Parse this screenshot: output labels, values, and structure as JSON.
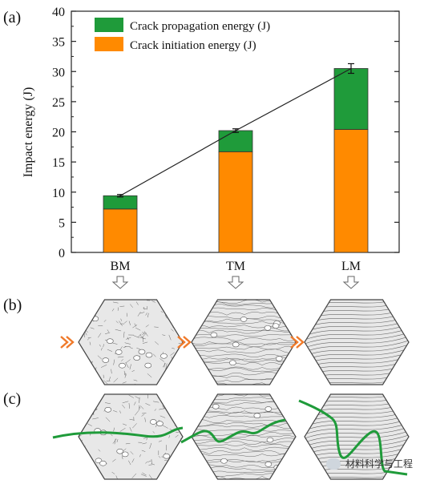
{
  "panels": {
    "a": "(a)",
    "b": "(b)",
    "c": "(c)"
  },
  "colors": {
    "propagation": "#1f9b3a",
    "initiation": "#ff8a00",
    "crack": "#1f9b3a",
    "chevron": "#f07a2a",
    "hex_fill": "#e8e8e8"
  },
  "chart_data": {
    "type": "bar",
    "stacked": true,
    "categories": [
      "BM",
      "TM",
      "LM"
    ],
    "ylabel": "Impact energy (J)",
    "xlabel": "",
    "ylim": [
      0,
      40
    ],
    "yticks": [
      0,
      5,
      10,
      15,
      20,
      25,
      30,
      35,
      40
    ],
    "grid": false,
    "legend_position": "top-left",
    "series": [
      {
        "name": "Crack initiation energy (J)",
        "values": [
          7.2,
          16.7,
          20.4
        ]
      },
      {
        "name": "Crack propagation energy (J)",
        "values": [
          2.2,
          3.5,
          10.1
        ]
      }
    ],
    "totals": [
      9.4,
      20.2,
      30.5
    ],
    "error": [
      0.2,
      0.3,
      0.8
    ]
  },
  "watermark": {
    "text": "材料科学与工程"
  }
}
